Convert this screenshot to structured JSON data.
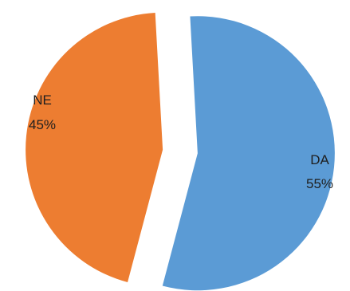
{
  "chart_data": {
    "type": "pie",
    "exploded": true,
    "legend": "none",
    "slices": [
      {
        "label": "DA",
        "percent_label": "55%",
        "value": 55,
        "color": "#5b9bd5"
      },
      {
        "label": "NE",
        "percent_label": "45%",
        "value": 45,
        "color": "#ed7d31"
      }
    ]
  }
}
